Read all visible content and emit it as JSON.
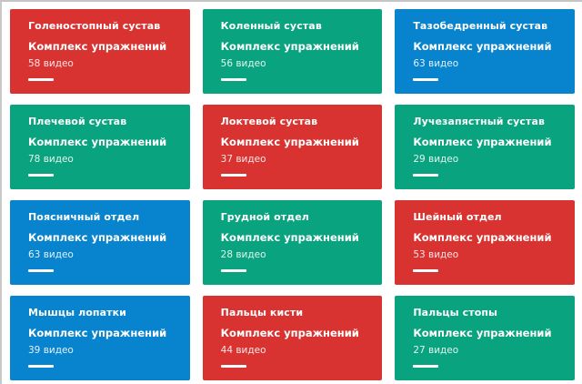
{
  "page": {
    "background": "#ffffff",
    "edge_border_color": "#c4c4c4"
  },
  "palette": {
    "red": "#d93331",
    "green": "#0aa37f",
    "blue": "#0884cf",
    "accent_bar": "#ffffff"
  },
  "cards": [
    {
      "title": "Голеностопный сустав",
      "subtitle": "Комплекс упражнений",
      "count": "58 видео",
      "color_name": "red",
      "color_hex": "#d93331"
    },
    {
      "title": "Коленный сустав",
      "subtitle": "Комплекс упражнений",
      "count": "56 видео",
      "color_name": "green",
      "color_hex": "#0aa37f"
    },
    {
      "title": "Тазобедренный сустав",
      "subtitle": "Комплекс упражнений",
      "count": "63 видео",
      "color_name": "blue",
      "color_hex": "#0884cf"
    },
    {
      "title": "Плечевой сустав",
      "subtitle": "Комплекс упражнений",
      "count": "78 видео",
      "color_name": "green",
      "color_hex": "#0aa37f"
    },
    {
      "title": "Локтевой сустав",
      "subtitle": "Комплекс упражнений",
      "count": "37 видео",
      "color_name": "red",
      "color_hex": "#d93331"
    },
    {
      "title": "Лучезапястный сустав",
      "subtitle": "Комплекс упражнений",
      "count": "29 видео",
      "color_name": "green",
      "color_hex": "#0aa37f"
    },
    {
      "title": "Поясничный отдел",
      "subtitle": "Комплекс упражнений",
      "count": "63 видео",
      "color_name": "blue",
      "color_hex": "#0884cf"
    },
    {
      "title": "Грудной отдел",
      "subtitle": "Комплекс упражнений",
      "count": "28 видео",
      "color_name": "green",
      "color_hex": "#0aa37f"
    },
    {
      "title": "Шейный отдел",
      "subtitle": "Комплекс упражнений",
      "count": "53 видео",
      "color_name": "red",
      "color_hex": "#d93331"
    },
    {
      "title": "Мышцы лопатки",
      "subtitle": "Комплекс упражнений",
      "count": "39 видео",
      "color_name": "blue",
      "color_hex": "#0884cf"
    },
    {
      "title": "Пальцы кисти",
      "subtitle": "Комплекс упражнений",
      "count": "44 видео",
      "color_name": "red",
      "color_hex": "#d93331"
    },
    {
      "title": "Пальцы стопы",
      "subtitle": "Комплекс упражнений",
      "count": "27 видео",
      "color_name": "green",
      "color_hex": "#0aa37f"
    }
  ]
}
